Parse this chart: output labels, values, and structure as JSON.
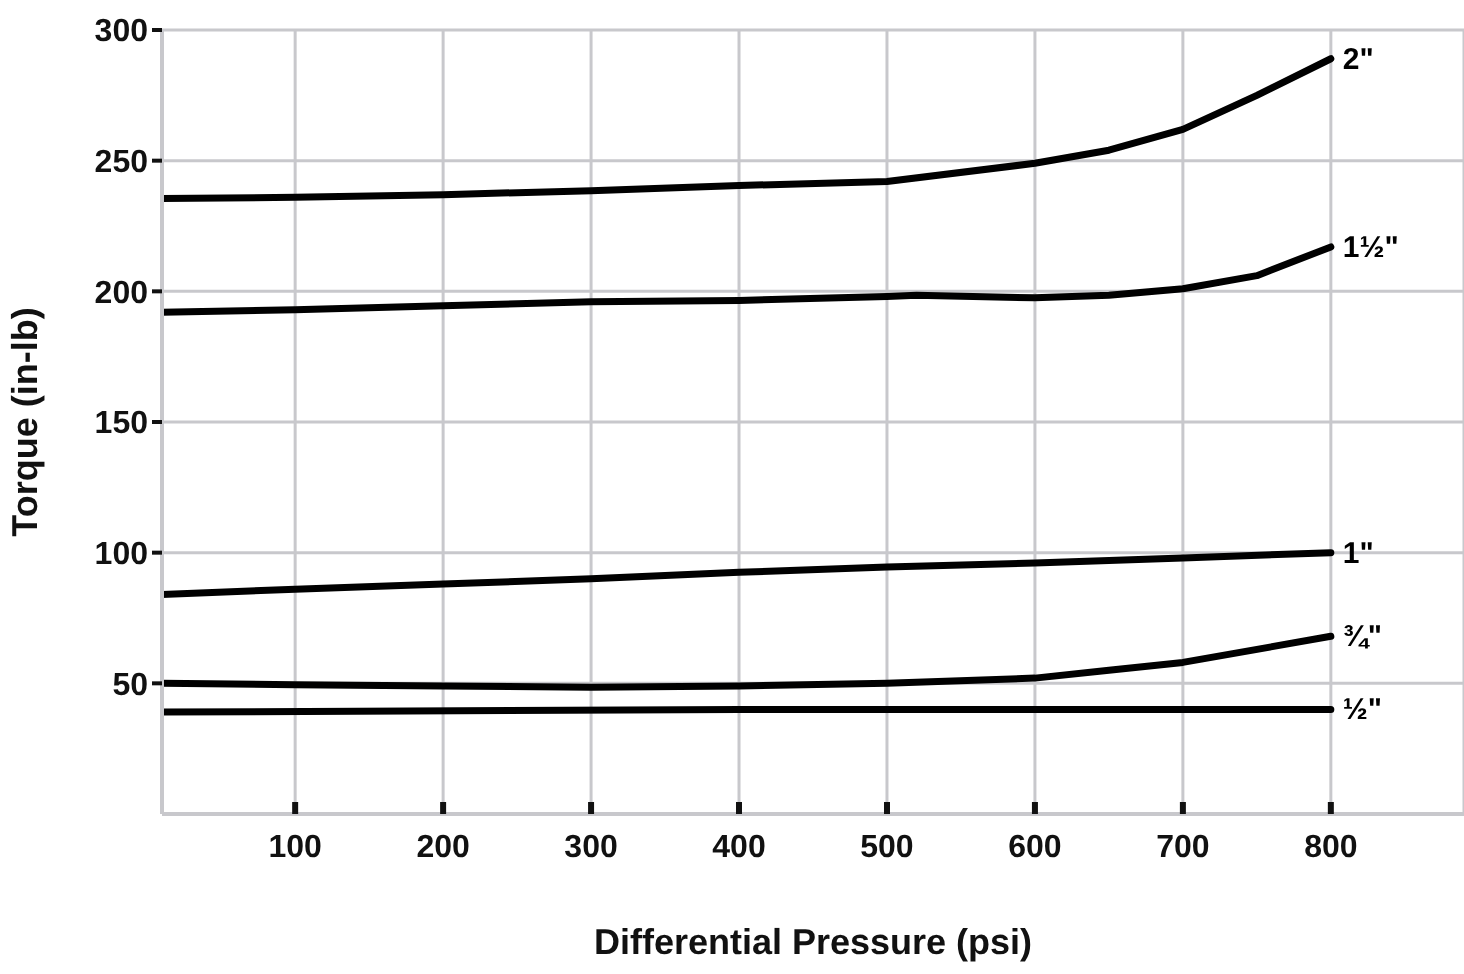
{
  "chart_data": {
    "type": "line",
    "xlabel": "Differential Pressure (psi)",
    "ylabel": "Torque (in-lb)",
    "xlim": [
      10,
      890
    ],
    "xticks": [
      100,
      200,
      300,
      400,
      500,
      600,
      700,
      800
    ],
    "ylim": [
      0,
      300
    ],
    "yticks": [
      50,
      100,
      150,
      200,
      250,
      300
    ],
    "grid": true,
    "legend": false,
    "marker": "none",
    "line_style": "solid",
    "series": [
      {
        "name": "2\"",
        "color": "#000000",
        "x": [
          10,
          100,
          200,
          300,
          400,
          500,
          600,
          650,
          700,
          750,
          800
        ],
        "values": [
          235.5,
          236,
          237,
          238.5,
          240.5,
          242,
          249,
          254,
          262,
          275,
          289
        ]
      },
      {
        "name": "1½\"",
        "color": "#000000",
        "x": [
          10,
          100,
          200,
          300,
          400,
          500,
          520,
          600,
          650,
          700,
          750,
          800
        ],
        "values": [
          192,
          193,
          194.5,
          196,
          196.5,
          198,
          198.5,
          197.5,
          198.5,
          201,
          206,
          217
        ]
      },
      {
        "name": "1\"",
        "color": "#000000",
        "x": [
          10,
          100,
          200,
          300,
          400,
          500,
          600,
          700,
          800
        ],
        "values": [
          84,
          86,
          88,
          90,
          92.5,
          94.5,
          96,
          98,
          100
        ]
      },
      {
        "name": "¾\"",
        "color": "#000000",
        "x": [
          10,
          100,
          200,
          300,
          400,
          500,
          600,
          650,
          700,
          800
        ],
        "values": [
          50,
          49.5,
          49,
          48.5,
          49,
          50,
          52,
          55,
          58,
          68
        ]
      },
      {
        "name": "½\"",
        "color": "#000000",
        "x": [
          10,
          400,
          800
        ],
        "values": [
          39,
          40,
          40
        ]
      }
    ]
  }
}
